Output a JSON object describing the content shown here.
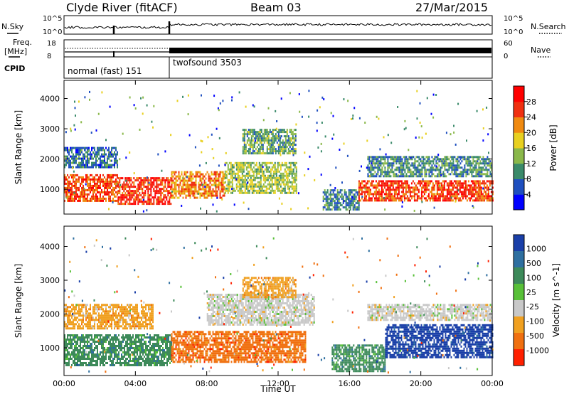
{
  "header": {
    "station": "Clyde River (fitACF)",
    "beam": "Beam 03",
    "date": "27/Mar/2015"
  },
  "params": {
    "nsky_label": "N.Sky",
    "nsearch_label": "N.Search",
    "freq_label_1": "Freq.",
    "freq_label_2": "[MHz]",
    "nave_label": "Nave",
    "cpid_label": "CPID",
    "nsky_ticks": [
      "10^5",
      "10^0"
    ],
    "nsearch_ticks": [
      "10^5",
      "10^0"
    ],
    "freq_ticks": [
      "18",
      "8"
    ],
    "nave_ticks": [
      "60",
      "0"
    ],
    "cpid_segments": [
      {
        "label": "normal (fast) 151",
        "start_hour": 0,
        "end_hour": 6
      },
      {
        "label": "twofsound 3503",
        "start_hour": 6,
        "end_hour": 24
      }
    ]
  },
  "chart_data": [
    {
      "type": "heatmap",
      "name": "Power",
      "ylabel": "Slant Range [km]",
      "ylim": [
        180,
        4600
      ],
      "yticks": [
        1000,
        2000,
        3000,
        4000
      ],
      "xlim": [
        0,
        24
      ],
      "colorbar": {
        "label": "Power [dB]",
        "ticks": [
          4,
          8,
          12,
          16,
          20,
          24,
          28
        ],
        "range": [
          0,
          32
        ],
        "colors": [
          "#0000ff",
          "#1f4fbf",
          "#3a8a6a",
          "#8ab84a",
          "#e8d020",
          "#f08a10",
          "#f03010",
          "#ff0000"
        ]
      },
      "echo_regions": [
        {
          "t0": 0.0,
          "t1": 3.0,
          "r0": 600,
          "r1": 1500,
          "level": 25
        },
        {
          "t0": 3.0,
          "t1": 6.0,
          "r0": 500,
          "r1": 1400,
          "level": 27
        },
        {
          "t0": 6.0,
          "t1": 9.0,
          "r0": 700,
          "r1": 1600,
          "level": 22
        },
        {
          "t0": 9.0,
          "t1": 13.0,
          "r0": 900,
          "r1": 1900,
          "level": 15
        },
        {
          "t0": 10.0,
          "t1": 13.0,
          "r0": 2200,
          "r1": 3000,
          "level": 12
        },
        {
          "t0": 14.5,
          "t1": 16.5,
          "r0": 300,
          "r1": 1000,
          "level": 9
        },
        {
          "t0": 16.5,
          "t1": 24.0,
          "r0": 600,
          "r1": 1300,
          "level": 26
        },
        {
          "t0": 17.0,
          "t1": 24.0,
          "r0": 1400,
          "r1": 2100,
          "level": 10
        },
        {
          "t0": 0.0,
          "t1": 3.0,
          "r0": 1700,
          "r1": 2400,
          "level": 8
        }
      ]
    },
    {
      "type": "heatmap",
      "name": "Velocity",
      "ylabel": "Slant Range [km]",
      "ylim": [
        180,
        4600
      ],
      "yticks": [
        1000,
        2000,
        3000,
        4000
      ],
      "xlim": [
        0,
        24
      ],
      "xticks": [
        "00:00",
        "04:00",
        "08:00",
        "12:00",
        "16:00",
        "20:00",
        "00:00"
      ],
      "xlabel": "Time UT",
      "colorbar": {
        "label": "Velocity [m s^-1]",
        "ticks": [
          "1000",
          "500",
          "100",
          "25",
          "-25",
          "-100",
          "-500",
          "-1000"
        ],
        "colors": [
          "#1a3fa8",
          "#2e6fa0",
          "#3d8a5a",
          "#58c038",
          "#c8c8c8",
          "#f0a020",
          "#f07010",
          "#ff2000"
        ]
      },
      "echo_regions": [
        {
          "t0": 0.0,
          "t1": 6.0,
          "r0": 500,
          "r1": 1400,
          "cls": 2
        },
        {
          "t0": 0.0,
          "t1": 5.0,
          "r0": 1600,
          "r1": 2300,
          "cls": 5
        },
        {
          "t0": 6.0,
          "t1": 13.5,
          "r0": 600,
          "r1": 1500,
          "cls": 6
        },
        {
          "t0": 8.0,
          "t1": 14.0,
          "r0": 1700,
          "r1": 2600,
          "cls": 4
        },
        {
          "t0": 10.0,
          "t1": 13.0,
          "r0": 2500,
          "r1": 3100,
          "cls": 5
        },
        {
          "t0": 15.0,
          "t1": 18.0,
          "r0": 300,
          "r1": 1100,
          "cls": 2
        },
        {
          "t0": 18.0,
          "t1": 24.0,
          "r0": 700,
          "r1": 1700,
          "cls": 0
        },
        {
          "t0": 17.0,
          "t1": 24.0,
          "r0": 1800,
          "r1": 2300,
          "cls": 4
        }
      ]
    }
  ]
}
